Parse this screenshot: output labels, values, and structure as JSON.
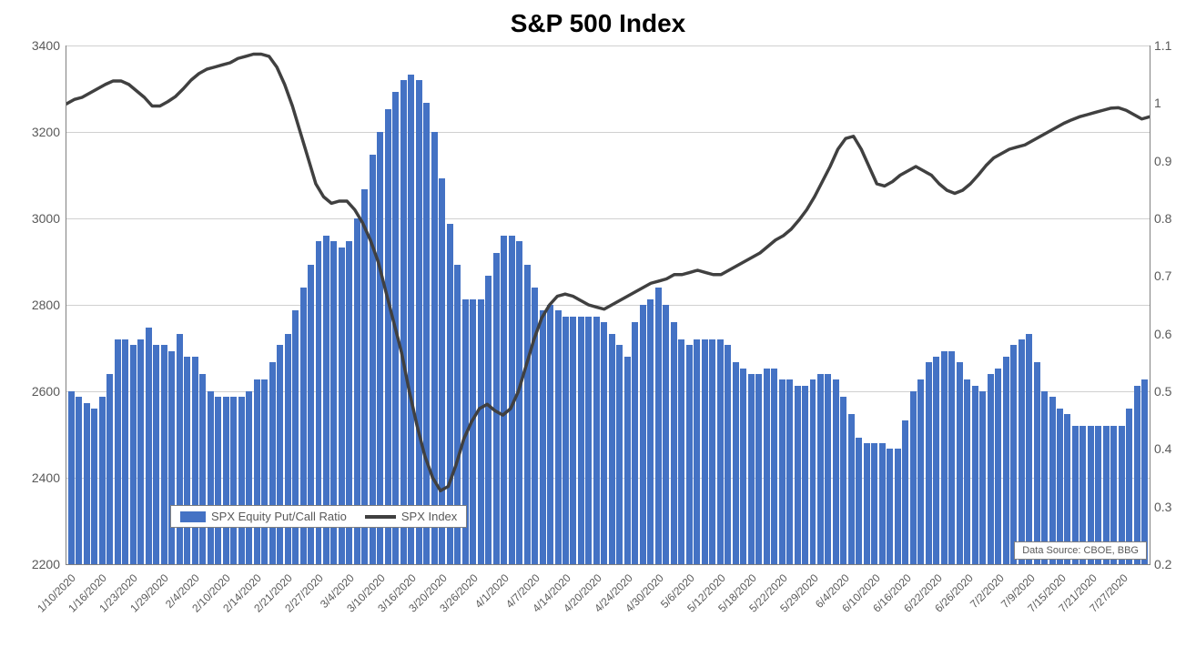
{
  "chart": {
    "type": "bar+line",
    "title": "S&P 500 Index",
    "title_fontsize": 28,
    "background_color": "#ffffff",
    "grid_color": "#d0d0d0",
    "axis_color": "#808080",
    "label_color": "#595959",
    "label_fontsize": 14,
    "xlabel_fontsize": 12,
    "y_left": {
      "min": 2200,
      "max": 3400,
      "step": 200,
      "label": ""
    },
    "y_right": {
      "min": 0.2,
      "max": 1.1,
      "step": 0.1,
      "label": ""
    },
    "x_labels_visible": [
      "1/10/2020",
      "1/16/2020",
      "1/23/2020",
      "1/29/2020",
      "2/4/2020",
      "2/10/2020",
      "2/14/2020",
      "2/21/2020",
      "2/27/2020",
      "3/4/2020",
      "3/10/2020",
      "3/16/2020",
      "3/20/2020",
      "3/26/2020",
      "4/1/2020",
      "4/7/2020",
      "4/14/2020",
      "4/20/2020",
      "4/24/2020",
      "4/30/2020",
      "5/6/2020",
      "5/12/2020",
      "5/18/2020",
      "5/22/2020",
      "5/29/2020",
      "6/4/2020",
      "6/10/2020",
      "6/16/2020",
      "6/22/2020",
      "6/26/2020",
      "7/2/2020",
      "7/9/2020",
      "7/15/2020",
      "7/21/2020",
      "7/27/2020"
    ],
    "x_label_interval": 4,
    "bar_series": {
      "name": "SPX Equity Put/Call Ratio",
      "color": "#4472c4",
      "axis": "right",
      "values": [
        0.5,
        0.49,
        0.48,
        0.47,
        0.49,
        0.53,
        0.59,
        0.59,
        0.58,
        0.59,
        0.61,
        0.58,
        0.58,
        0.57,
        0.6,
        0.56,
        0.56,
        0.53,
        0.5,
        0.49,
        0.49,
        0.49,
        0.49,
        0.5,
        0.52,
        0.52,
        0.55,
        0.58,
        0.6,
        0.64,
        0.68,
        0.72,
        0.76,
        0.77,
        0.76,
        0.75,
        0.76,
        0.8,
        0.85,
        0.91,
        0.95,
        0.99,
        1.02,
        1.04,
        1.05,
        1.04,
        1.0,
        0.95,
        0.87,
        0.79,
        0.72,
        0.66,
        0.66,
        0.66,
        0.7,
        0.74,
        0.77,
        0.77,
        0.76,
        0.72,
        0.68,
        0.64,
        0.65,
        0.64,
        0.63,
        0.63,
        0.63,
        0.63,
        0.63,
        0.62,
        0.6,
        0.58,
        0.56,
        0.62,
        0.65,
        0.66,
        0.68,
        0.65,
        0.62,
        0.59,
        0.58,
        0.59,
        0.59,
        0.59,
        0.59,
        0.58,
        0.55,
        0.54,
        0.53,
        0.53,
        0.54,
        0.54,
        0.52,
        0.52,
        0.51,
        0.51,
        0.52,
        0.53,
        0.53,
        0.52,
        0.49,
        0.46,
        0.42,
        0.41,
        0.41,
        0.41,
        0.4,
        0.4,
        0.45,
        0.5,
        0.52,
        0.55,
        0.56,
        0.57,
        0.57,
        0.55,
        0.52,
        0.51,
        0.5,
        0.53,
        0.54,
        0.56,
        0.58,
        0.59,
        0.6,
        0.55,
        0.5,
        0.49,
        0.47,
        0.46,
        0.44,
        0.44,
        0.44,
        0.44,
        0.44,
        0.44,
        0.44,
        0.47,
        0.51,
        0.52
      ]
    },
    "line_series": {
      "name": "SPX Index",
      "color": "#404040",
      "width": 3.5,
      "axis": "left",
      "values": [
        3265,
        3275,
        3280,
        3290,
        3300,
        3310,
        3318,
        3318,
        3310,
        3295,
        3280,
        3260,
        3260,
        3270,
        3282,
        3300,
        3320,
        3335,
        3345,
        3350,
        3355,
        3360,
        3370,
        3375,
        3380,
        3380,
        3375,
        3350,
        3310,
        3260,
        3200,
        3140,
        3080,
        3050,
        3035,
        3040,
        3040,
        3020,
        2990,
        2950,
        2900,
        2830,
        2760,
        2690,
        2600,
        2520,
        2450,
        2400,
        2370,
        2380,
        2430,
        2490,
        2530,
        2560,
        2570,
        2555,
        2545,
        2560,
        2600,
        2660,
        2720,
        2770,
        2800,
        2820,
        2825,
        2820,
        2810,
        2800,
        2795,
        2790,
        2800,
        2810,
        2820,
        2830,
        2840,
        2850,
        2855,
        2860,
        2870,
        2870,
        2875,
        2880,
        2875,
        2870,
        2870,
        2880,
        2890,
        2900,
        2910,
        2920,
        2935,
        2950,
        2960,
        2975,
        2996,
        3020,
        3050,
        3085,
        3120,
        3160,
        3185,
        3190,
        3160,
        3120,
        3080,
        3075,
        3085,
        3100,
        3110,
        3120,
        3110,
        3100,
        3080,
        3065,
        3058,
        3065,
        3080,
        3100,
        3122,
        3140,
        3150,
        3160,
        3165,
        3170,
        3180,
        3190,
        3200,
        3210,
        3220,
        3228,
        3235,
        3240,
        3245,
        3250,
        3255,
        3256,
        3250,
        3240,
        3230,
        3235
      ]
    },
    "legend": {
      "position": "bottom-left-inset",
      "border_color": "#808080",
      "items": [
        "SPX Equity Put/Call Ratio",
        "SPX Index"
      ]
    },
    "source_box": {
      "text": "Data Source: CBOE, BBG",
      "border_color": "#808080"
    }
  }
}
